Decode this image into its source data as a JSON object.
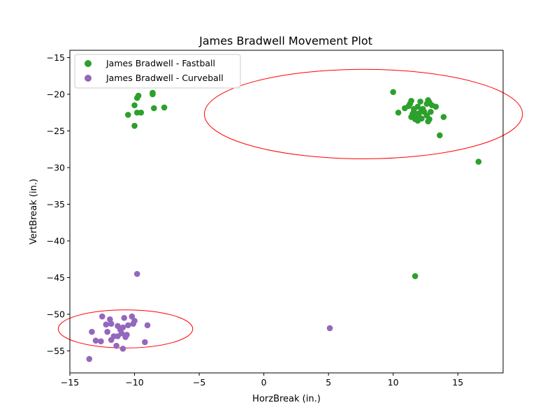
{
  "chart_data": {
    "type": "scatter",
    "title": "James Bradwell Movement Plot",
    "xlabel": "HorzBreak (in.)",
    "ylabel": "VertBreak (in.)",
    "xlim": [
      -15,
      18.5
    ],
    "ylim": [
      -58,
      -14
    ],
    "xticks": [
      -15,
      -10,
      -5,
      0,
      5,
      10,
      15
    ],
    "yticks": [
      -15,
      -20,
      -25,
      -30,
      -35,
      -40,
      -45,
      -50,
      -55
    ],
    "xtick_labels": [
      "−15",
      "−10",
      "−5",
      "0",
      "5",
      "10",
      "15"
    ],
    "ytick_labels": [
      "−15",
      "−20",
      "−25",
      "−30",
      "−35",
      "−40",
      "−45",
      "−50",
      "−55"
    ],
    "grid": false,
    "legend_position": "top-left",
    "series": [
      {
        "name": "James Bradwell - Fastball",
        "color": "#2ca02c",
        "points": [
          [
            -9.7,
            -20.2
          ],
          [
            -9.8,
            -20.5
          ],
          [
            -8.6,
            -19.8
          ],
          [
            -8.6,
            -20.0
          ],
          [
            -10.0,
            -21.5
          ],
          [
            -7.7,
            -21.8
          ],
          [
            -8.5,
            -21.9
          ],
          [
            -9.5,
            -22.5
          ],
          [
            -9.8,
            -22.5
          ],
          [
            -10.5,
            -22.8
          ],
          [
            -10.0,
            -24.3
          ],
          [
            10.0,
            -19.7
          ],
          [
            10.4,
            -22.5
          ],
          [
            10.9,
            -21.9
          ],
          [
            11.2,
            -21.6
          ],
          [
            11.4,
            -20.9
          ],
          [
            11.3,
            -21.3
          ],
          [
            11.6,
            -22.0
          ],
          [
            11.9,
            -21.7
          ],
          [
            12.1,
            -21.0
          ],
          [
            12.3,
            -22.1
          ],
          [
            12.6,
            -21.3
          ],
          [
            12.8,
            -21.1
          ],
          [
            12.7,
            -20.8
          ],
          [
            13.0,
            -21.5
          ],
          [
            13.3,
            -21.7
          ],
          [
            11.5,
            -22.7
          ],
          [
            11.8,
            -23.0
          ],
          [
            12.0,
            -22.6
          ],
          [
            12.2,
            -23.3
          ],
          [
            12.4,
            -22.4
          ],
          [
            12.6,
            -22.9
          ],
          [
            12.8,
            -23.4
          ],
          [
            12.7,
            -23.7
          ],
          [
            11.4,
            -23.1
          ],
          [
            11.7,
            -23.4
          ],
          [
            11.9,
            -23.6
          ],
          [
            12.1,
            -23.3
          ],
          [
            12.3,
            -22.0
          ],
          [
            12.9,
            -22.4
          ],
          [
            11.6,
            -22.3
          ],
          [
            12.2,
            -22.2
          ],
          [
            13.9,
            -23.1
          ],
          [
            13.6,
            -25.6
          ],
          [
            16.6,
            -29.2
          ],
          [
            11.7,
            -44.8
          ]
        ]
      },
      {
        "name": "James Bradwell - Curveball",
        "color": "#9467bd",
        "points": [
          [
            -9.8,
            -44.5
          ],
          [
            -12.5,
            -50.3
          ],
          [
            -11.9,
            -50.7
          ],
          [
            -10.8,
            -50.5
          ],
          [
            -10.2,
            -50.3
          ],
          [
            -12.2,
            -51.4
          ],
          [
            -11.8,
            -51.3
          ],
          [
            -11.3,
            -51.6
          ],
          [
            -10.9,
            -51.8
          ],
          [
            -11.1,
            -52.1
          ],
          [
            -10.5,
            -51.5
          ],
          [
            -10.1,
            -51.3
          ],
          [
            -10.0,
            -50.9
          ],
          [
            -9.0,
            -51.5
          ],
          [
            -13.3,
            -52.4
          ],
          [
            -12.1,
            -52.4
          ],
          [
            -11.0,
            -52.6
          ],
          [
            -10.6,
            -52.8
          ],
          [
            -10.7,
            -53.1
          ],
          [
            -11.6,
            -53.0
          ],
          [
            -11.3,
            -53.0
          ],
          [
            -11.8,
            -53.5
          ],
          [
            -13.0,
            -53.6
          ],
          [
            -12.6,
            -53.7
          ],
          [
            -11.4,
            -54.3
          ],
          [
            -10.9,
            -54.7
          ],
          [
            -9.2,
            -53.8
          ],
          [
            -13.5,
            -56.1
          ],
          [
            5.1,
            -51.9
          ]
        ]
      }
    ],
    "ellipses": [
      {
        "color": "#ff0000",
        "center": [
          7.7,
          -22.7
        ],
        "width_x": 24.6,
        "height_y": 12.2
      },
      {
        "color": "#ff0000",
        "center": [
          -10.7,
          -52.0
        ],
        "width_x": 10.4,
        "height_y": 5.2
      }
    ]
  }
}
